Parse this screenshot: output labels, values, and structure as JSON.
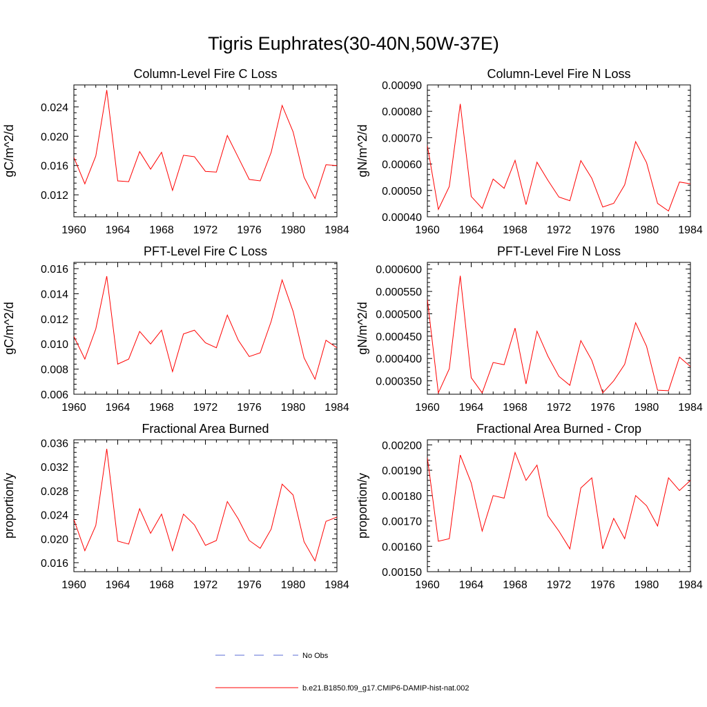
{
  "title": "Tigris Euphrates(30-40N,50W-37E)",
  "colors": {
    "model_line": "#ff0000",
    "obs_line": "#5a6bd6",
    "axis": "#000000"
  },
  "legend": {
    "obs_label": "No Obs",
    "model_label": "b.e21.B1850.f09_g17.CMIP6-DAMIP-hist-nat.002"
  },
  "chart_data": [
    {
      "type": "line",
      "title": "Column-Level Fire C Loss",
      "ylabel": "gC/m^2/d",
      "xlim": [
        1960,
        1984
      ],
      "ylim": [
        0.009,
        0.027
      ],
      "xticks": [
        "1960",
        "1964",
        "1968",
        "1972",
        "1976",
        "1980",
        "1984"
      ],
      "yticks": [
        "0.012",
        "0.016",
        "0.020",
        "0.024"
      ],
      "series": [
        {
          "x": [
            1960,
            1961,
            1962,
            1963,
            1964,
            1965,
            1966,
            1967,
            1968,
            1969,
            1970,
            1971,
            1972,
            1973,
            1974,
            1975,
            1976,
            1977,
            1978,
            1979,
            1980,
            1981,
            1982,
            1983,
            1984
          ],
          "values": [
            0.0171,
            0.0135,
            0.0173,
            0.0263,
            0.0139,
            0.0138,
            0.0179,
            0.0155,
            0.0178,
            0.0126,
            0.0174,
            0.0172,
            0.0152,
            0.0151,
            0.0201,
            0.0171,
            0.0141,
            0.0139,
            0.0178,
            0.0242,
            0.0206,
            0.0144,
            0.0115,
            0.0161,
            0.016
          ]
        }
      ]
    },
    {
      "type": "line",
      "title": "Column-Level Fire N Loss",
      "ylabel": "gN/m^2/d",
      "xlim": [
        1960,
        1984
      ],
      "ylim": [
        0.0004,
        0.0009
      ],
      "xticks": [
        "1960",
        "1964",
        "1968",
        "1972",
        "1976",
        "1980",
        "1984"
      ],
      "yticks": [
        "0.00040",
        "0.00050",
        "0.00060",
        "0.00070",
        "0.00080",
        "0.00090"
      ],
      "series": [
        {
          "x": [
            1960,
            1961,
            1962,
            1963,
            1964,
            1965,
            1966,
            1967,
            1968,
            1969,
            1970,
            1971,
            1972,
            1973,
            1974,
            1975,
            1976,
            1977,
            1978,
            1979,
            1980,
            1981,
            1982,
            1983,
            1984
          ],
          "values": [
            0.00067,
            0.000428,
            0.000515,
            0.000828,
            0.000477,
            0.000432,
            0.000543,
            0.000508,
            0.000614,
            0.000446,
            0.000607,
            0.000538,
            0.000475,
            0.000461,
            0.000613,
            0.000546,
            0.000437,
            0.000451,
            0.000521,
            0.000685,
            0.000605,
            0.000451,
            0.000422,
            0.000532,
            0.000525
          ]
        }
      ]
    },
    {
      "type": "line",
      "title": "PFT-Level Fire C Loss",
      "ylabel": "gC/m^2/d",
      "xlim": [
        1960,
        1984
      ],
      "ylim": [
        0.006,
        0.0165
      ],
      "xticks": [
        "1960",
        "1964",
        "1968",
        "1972",
        "1976",
        "1980",
        "1984"
      ],
      "yticks": [
        "0.006",
        "0.008",
        "0.010",
        "0.012",
        "0.014",
        "0.016"
      ],
      "series": [
        {
          "x": [
            1960,
            1961,
            1962,
            1963,
            1964,
            1965,
            1966,
            1967,
            1968,
            1969,
            1970,
            1971,
            1972,
            1973,
            1974,
            1975,
            1976,
            1977,
            1978,
            1979,
            1980,
            1981,
            1982,
            1983,
            1984
          ],
          "values": [
            0.0106,
            0.0088,
            0.0112,
            0.0154,
            0.0084,
            0.0088,
            0.011,
            0.01,
            0.0111,
            0.0078,
            0.0108,
            0.0111,
            0.0101,
            0.0097,
            0.0123,
            0.0103,
            0.009,
            0.0093,
            0.0118,
            0.0151,
            0.0126,
            0.0089,
            0.0072,
            0.0103,
            0.0097
          ]
        }
      ]
    },
    {
      "type": "line",
      "title": "PFT-Level Fire N Loss",
      "ylabel": "gN/m^2/d",
      "xlim": [
        1960,
        1984
      ],
      "ylim": [
        0.00032,
        0.000615
      ],
      "xticks": [
        "1960",
        "1964",
        "1968",
        "1972",
        "1976",
        "1980",
        "1984"
      ],
      "yticks": [
        "0.000350",
        "0.000400",
        "0.000450",
        "0.000500",
        "0.000550",
        "0.000600"
      ],
      "series": [
        {
          "x": [
            1960,
            1961,
            1962,
            1963,
            1964,
            1965,
            1966,
            1967,
            1968,
            1969,
            1970,
            1971,
            1972,
            1973,
            1974,
            1975,
            1976,
            1977,
            1978,
            1979,
            1980,
            1981,
            1982,
            1983,
            1984
          ],
          "values": [
            0.000532,
            0.000323,
            0.000377,
            0.000585,
            0.000357,
            0.000323,
            0.000391,
            0.000386,
            0.000468,
            0.000343,
            0.000461,
            0.000405,
            0.00036,
            0.00034,
            0.00044,
            0.000396,
            0.000323,
            0.00035,
            0.000387,
            0.00048,
            0.000427,
            0.000329,
            0.000328,
            0.000403,
            0.000382
          ]
        }
      ]
    },
    {
      "type": "line",
      "title": "Fractional Area Burned",
      "ylabel": "proportion/y",
      "xlim": [
        1960,
        1984
      ],
      "ylim": [
        0.0145,
        0.0365
      ],
      "xticks": [
        "1960",
        "1964",
        "1968",
        "1972",
        "1976",
        "1980",
        "1984"
      ],
      "yticks": [
        "0.016",
        "0.020",
        "0.024",
        "0.028",
        "0.032",
        "0.036"
      ],
      "series": [
        {
          "x": [
            1960,
            1961,
            1962,
            1963,
            1964,
            1965,
            1966,
            1967,
            1968,
            1969,
            1970,
            1971,
            1972,
            1973,
            1974,
            1975,
            1976,
            1977,
            1978,
            1979,
            1980,
            1981,
            1982,
            1983,
            1984
          ],
          "values": [
            0.0232,
            0.018,
            0.0222,
            0.035,
            0.0196,
            0.0191,
            0.025,
            0.0209,
            0.0241,
            0.018,
            0.0241,
            0.0223,
            0.0189,
            0.0197,
            0.0262,
            0.0233,
            0.0197,
            0.0184,
            0.0216,
            0.0291,
            0.0273,
            0.0195,
            0.0163,
            0.0229,
            0.0236
          ]
        }
      ]
    },
    {
      "type": "line",
      "title": "Fractional Area Burned - Crop",
      "ylabel": "proportion/y",
      "xlim": [
        1960,
        1984
      ],
      "ylim": [
        0.0015,
        0.00202
      ],
      "xticks": [
        "1960",
        "1964",
        "1968",
        "1972",
        "1976",
        "1980",
        "1984"
      ],
      "yticks": [
        "0.00150",
        "0.00160",
        "0.00170",
        "0.00180",
        "0.00190",
        "0.00200"
      ],
      "series": [
        {
          "x": [
            1960,
            1961,
            1962,
            1963,
            1964,
            1965,
            1966,
            1967,
            1968,
            1969,
            1970,
            1971,
            1972,
            1973,
            1974,
            1975,
            1976,
            1977,
            1978,
            1979,
            1980,
            1981,
            1982,
            1983,
            1984
          ],
          "values": [
            0.00195,
            0.00162,
            0.00163,
            0.00196,
            0.00185,
            0.00166,
            0.0018,
            0.00179,
            0.00197,
            0.00186,
            0.00192,
            0.00172,
            0.00166,
            0.00159,
            0.00183,
            0.00187,
            0.00159,
            0.00171,
            0.00163,
            0.0018,
            0.00176,
            0.00168,
            0.00187,
            0.00182,
            0.00186
          ]
        }
      ]
    }
  ]
}
